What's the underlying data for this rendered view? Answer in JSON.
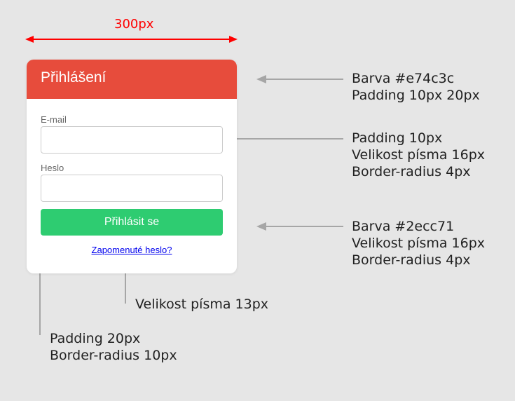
{
  "dimension_label": "300px",
  "login_card": {
    "title": "Přihlášení",
    "email_label": "E-mail",
    "email_value": "",
    "password_label": "Heslo",
    "password_value": "",
    "submit_label": "Přihlásit se",
    "forgot_link": "Zapomenuté heslo?"
  },
  "annotations": {
    "header": [
      "Barva #e74c3c",
      "Padding 10px 20px"
    ],
    "input": [
      "Padding 10px",
      "Velikost písma 16px",
      "Border-radius 4px"
    ],
    "button": [
      "Barva #2ecc71",
      "Velikost písma 16px",
      "Border-radius 4px"
    ],
    "link": [
      "Velikost písma 13px"
    ],
    "card": [
      "Padding 20px",
      "Border-radius 10px"
    ]
  },
  "colors": {
    "background": "#e6e6e6",
    "header": "#e74c3c",
    "button": "#2ecc71",
    "dimension": "#ff0000",
    "arrow": "#a6a6a6"
  }
}
